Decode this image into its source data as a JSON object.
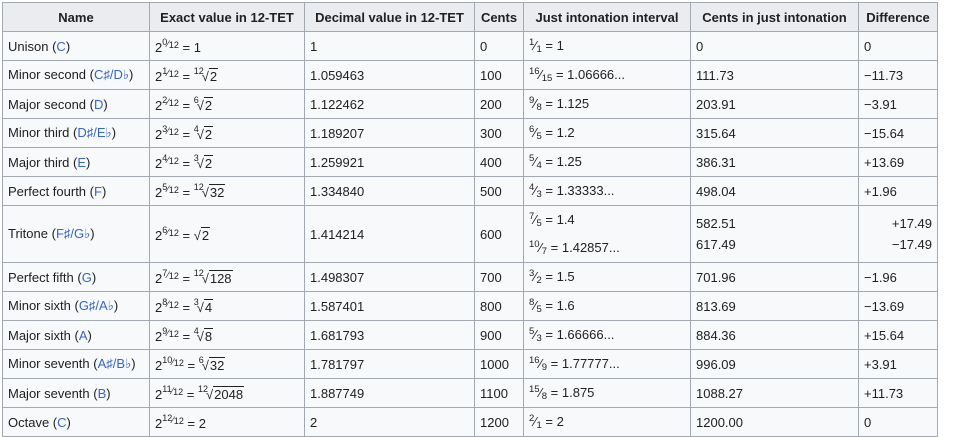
{
  "columns": [
    "Name",
    "Exact value in 12-TET",
    "Decimal value in 12-TET",
    "Cents",
    "Just intonation interval",
    "Cents in just intonation",
    "Difference"
  ],
  "rows": [
    {
      "name": "Unison",
      "note": "C",
      "exp_num": "0",
      "exp_den": "12",
      "exact_eq": "1",
      "root_idx": "",
      "radicand": "",
      "decimal": "1",
      "cents": "0",
      "ji": [
        {
          "num": "1",
          "den": "1",
          "value": "1"
        }
      ],
      "ji_cents": [
        "0"
      ],
      "diff": [
        "0"
      ]
    },
    {
      "name": "Minor second",
      "note": "C♯/D♭",
      "exp_num": "1",
      "exp_den": "12",
      "exact_eq": "",
      "root_idx": "12",
      "radicand": "2",
      "decimal": "1.059463",
      "cents": "100",
      "ji": [
        {
          "num": "16",
          "den": "15",
          "value": "1.06666..."
        }
      ],
      "ji_cents": [
        "111.73"
      ],
      "diff": [
        "−11.73"
      ]
    },
    {
      "name": "Major second",
      "note": "D",
      "exp_num": "2",
      "exp_den": "12",
      "exact_eq": "",
      "root_idx": "6",
      "radicand": "2",
      "decimal": "1.122462",
      "cents": "200",
      "ji": [
        {
          "num": "9",
          "den": "8",
          "value": "1.125"
        }
      ],
      "ji_cents": [
        "203.91"
      ],
      "diff": [
        "−3.91"
      ]
    },
    {
      "name": "Minor third",
      "note": "D♯/E♭",
      "exp_num": "3",
      "exp_den": "12",
      "exact_eq": "",
      "root_idx": "4",
      "radicand": "2",
      "decimal": "1.189207",
      "cents": "300",
      "ji": [
        {
          "num": "6",
          "den": "5",
          "value": "1.2"
        }
      ],
      "ji_cents": [
        "315.64"
      ],
      "diff": [
        "−15.64"
      ]
    },
    {
      "name": "Major third",
      "note": "E",
      "exp_num": "4",
      "exp_den": "12",
      "exact_eq": "",
      "root_idx": "3",
      "radicand": "2",
      "decimal": "1.259921",
      "cents": "400",
      "ji": [
        {
          "num": "5",
          "den": "4",
          "value": "1.25"
        }
      ],
      "ji_cents": [
        "386.31"
      ],
      "diff": [
        "+13.69"
      ]
    },
    {
      "name": "Perfect fourth",
      "note": "F",
      "exp_num": "5",
      "exp_den": "12",
      "exact_eq": "",
      "root_idx": "12",
      "radicand": "32",
      "decimal": "1.334840",
      "cents": "500",
      "ji": [
        {
          "num": "4",
          "den": "3",
          "value": "1.33333..."
        }
      ],
      "ji_cents": [
        "498.04"
      ],
      "diff": [
        "+1.96"
      ]
    },
    {
      "name": "Tritone",
      "note": "F♯/G♭",
      "exp_num": "6",
      "exp_den": "12",
      "exact_eq": "",
      "root_idx": "",
      "radicand": "2",
      "decimal": "1.414214",
      "cents": "600",
      "ji": [
        {
          "num": "7",
          "den": "5",
          "value": "1.4"
        },
        {
          "num": "10",
          "den": "7",
          "value": "1.42857..."
        }
      ],
      "ji_cents": [
        "582.51",
        "617.49"
      ],
      "diff": [
        "+17.49",
        "−17.49"
      ]
    },
    {
      "name": "Perfect fifth",
      "note": "G",
      "exp_num": "7",
      "exp_den": "12",
      "exact_eq": "",
      "root_idx": "12",
      "radicand": "128",
      "decimal": "1.498307",
      "cents": "700",
      "ji": [
        {
          "num": "3",
          "den": "2",
          "value": "1.5"
        }
      ],
      "ji_cents": [
        "701.96"
      ],
      "diff": [
        "−1.96"
      ]
    },
    {
      "name": "Minor sixth",
      "note": "G♯/A♭",
      "exp_num": "8",
      "exp_den": "12",
      "exact_eq": "",
      "root_idx": "3",
      "radicand": "4",
      "decimal": "1.587401",
      "cents": "800",
      "ji": [
        {
          "num": "8",
          "den": "5",
          "value": "1.6"
        }
      ],
      "ji_cents": [
        "813.69"
      ],
      "diff": [
        "−13.69"
      ]
    },
    {
      "name": "Major sixth",
      "note": "A",
      "exp_num": "9",
      "exp_den": "12",
      "exact_eq": "",
      "root_idx": "4",
      "radicand": "8",
      "decimal": "1.681793",
      "cents": "900",
      "ji": [
        {
          "num": "5",
          "den": "3",
          "value": "1.66666..."
        }
      ],
      "ji_cents": [
        "884.36"
      ],
      "diff": [
        "+15.64"
      ]
    },
    {
      "name": "Minor seventh",
      "note": "A♯/B♭",
      "exp_num": "10",
      "exp_den": "12",
      "exact_eq": "",
      "root_idx": "6",
      "radicand": "32",
      "decimal": "1.781797",
      "cents": "1000",
      "ji": [
        {
          "num": "16",
          "den": "9",
          "value": "1.77777..."
        }
      ],
      "ji_cents": [
        "996.09"
      ],
      "diff": [
        "+3.91"
      ]
    },
    {
      "name": "Major seventh",
      "note": "B",
      "exp_num": "11",
      "exp_den": "12",
      "exact_eq": "",
      "root_idx": "12",
      "radicand": "2048",
      "decimal": "1.887749",
      "cents": "1100",
      "ji": [
        {
          "num": "15",
          "den": "8",
          "value": "1.875"
        }
      ],
      "ji_cents": [
        "1088.27"
      ],
      "diff": [
        "+11.73"
      ]
    },
    {
      "name": "Octave",
      "note": "C",
      "exp_num": "12",
      "exp_den": "12",
      "exact_eq": "2",
      "root_idx": "",
      "radicand": "",
      "decimal": "2",
      "cents": "1200",
      "ji": [
        {
          "num": "2",
          "den": "1",
          "value": "2"
        }
      ],
      "ji_cents": [
        "1200.00"
      ],
      "diff": [
        "0"
      ]
    }
  ]
}
